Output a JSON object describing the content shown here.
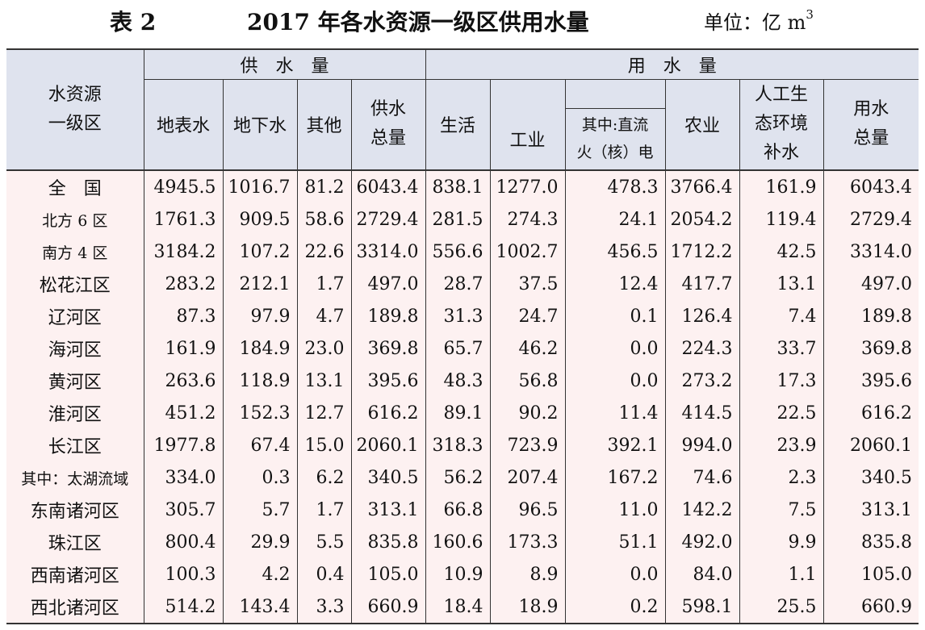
{
  "title": {
    "table_no": "表 2",
    "text": "2017 年各水资源一级区供用水量",
    "unit_prefix": "单位：亿 m",
    "unit_sup": "3"
  },
  "header": {
    "region": "水资源\n一级区",
    "supply_group": "供水量",
    "use_group": "用水量",
    "surface": "地表水",
    "ground": "地下水",
    "other": "其他",
    "supply_total": "供水\n总量",
    "domestic": "生活",
    "industry": "工业",
    "thermal": "其中:直流\n火（核）电",
    "agriculture": "农业",
    "eco": "人工生\n态环境\n补水",
    "use_total": "用水\n总量"
  },
  "rows": [
    {
      "region": "全　国",
      "surface": "4945.5",
      "ground": "1016.7",
      "other": "81.2",
      "supply_total": "6043.4",
      "domestic": "838.1",
      "industry": "1277.0",
      "thermal": "478.3",
      "agriculture": "3766.4",
      "eco": "161.9",
      "use_total": "6043.4"
    },
    {
      "region": "北方 6 区",
      "surface": "1761.3",
      "ground": "909.5",
      "other": "58.6",
      "supply_total": "2729.4",
      "domestic": "281.5",
      "industry": "274.3",
      "thermal": "24.1",
      "agriculture": "2054.2",
      "eco": "119.4",
      "use_total": "2729.4"
    },
    {
      "region": "南方 4 区",
      "surface": "3184.2",
      "ground": "107.2",
      "other": "22.6",
      "supply_total": "3314.0",
      "domestic": "556.6",
      "industry": "1002.7",
      "thermal": "456.5",
      "agriculture": "1712.2",
      "eco": "42.5",
      "use_total": "3314.0"
    },
    {
      "region": "松花江区",
      "surface": "283.2",
      "ground": "212.1",
      "other": "1.7",
      "supply_total": "497.0",
      "domestic": "28.7",
      "industry": "37.5",
      "thermal": "12.4",
      "agriculture": "417.7",
      "eco": "13.1",
      "use_total": "497.0"
    },
    {
      "region": "辽河区",
      "surface": "87.3",
      "ground": "97.9",
      "other": "4.7",
      "supply_total": "189.8",
      "domestic": "31.3",
      "industry": "24.7",
      "thermal": "0.1",
      "agriculture": "126.4",
      "eco": "7.4",
      "use_total": "189.8"
    },
    {
      "region": "海河区",
      "surface": "161.9",
      "ground": "184.9",
      "other": "23.0",
      "supply_total": "369.8",
      "domestic": "65.7",
      "industry": "46.2",
      "thermal": "0.0",
      "agriculture": "224.3",
      "eco": "33.7",
      "use_total": "369.8"
    },
    {
      "region": "黄河区",
      "surface": "263.6",
      "ground": "118.9",
      "other": "13.1",
      "supply_total": "395.6",
      "domestic": "48.3",
      "industry": "56.8",
      "thermal": "0.0",
      "agriculture": "273.2",
      "eco": "17.3",
      "use_total": "395.6"
    },
    {
      "region": "淮河区",
      "surface": "451.2",
      "ground": "152.3",
      "other": "12.7",
      "supply_total": "616.2",
      "domestic": "89.1",
      "industry": "90.2",
      "thermal": "11.4",
      "agriculture": "414.5",
      "eco": "22.5",
      "use_total": "616.2"
    },
    {
      "region": "长江区",
      "surface": "1977.8",
      "ground": "67.4",
      "other": "15.0",
      "supply_total": "2060.1",
      "domestic": "318.3",
      "industry": "723.9",
      "thermal": "392.1",
      "agriculture": "994.0",
      "eco": "23.9",
      "use_total": "2060.1"
    },
    {
      "region": "其中：太湖流域",
      "surface": "334.0",
      "ground": "0.3",
      "other": "6.2",
      "supply_total": "340.5",
      "domestic": "56.2",
      "industry": "207.4",
      "thermal": "167.2",
      "agriculture": "74.6",
      "eco": "2.3",
      "use_total": "340.5"
    },
    {
      "region": "东南诸河区",
      "surface": "305.7",
      "ground": "5.7",
      "other": "1.7",
      "supply_total": "313.1",
      "domestic": "66.8",
      "industry": "96.5",
      "thermal": "11.0",
      "agriculture": "142.2",
      "eco": "7.5",
      "use_total": "313.1"
    },
    {
      "region": "珠江区",
      "surface": "800.4",
      "ground": "29.9",
      "other": "5.5",
      "supply_total": "835.8",
      "domestic": "160.6",
      "industry": "173.3",
      "thermal": "51.1",
      "agriculture": "492.0",
      "eco": "9.9",
      "use_total": "835.8"
    },
    {
      "region": "西南诸河区",
      "surface": "100.3",
      "ground": "4.2",
      "other": "0.4",
      "supply_total": "105.0",
      "domestic": "10.9",
      "industry": "8.9",
      "thermal": "0.0",
      "agriculture": "84.0",
      "eco": "1.1",
      "use_total": "105.0"
    },
    {
      "region": "西北诸河区",
      "surface": "514.2",
      "ground": "143.4",
      "other": "3.3",
      "supply_total": "660.9",
      "domestic": "18.4",
      "industry": "18.9",
      "thermal": "0.2",
      "agriculture": "598.1",
      "eco": "25.5",
      "use_total": "660.9"
    }
  ]
}
